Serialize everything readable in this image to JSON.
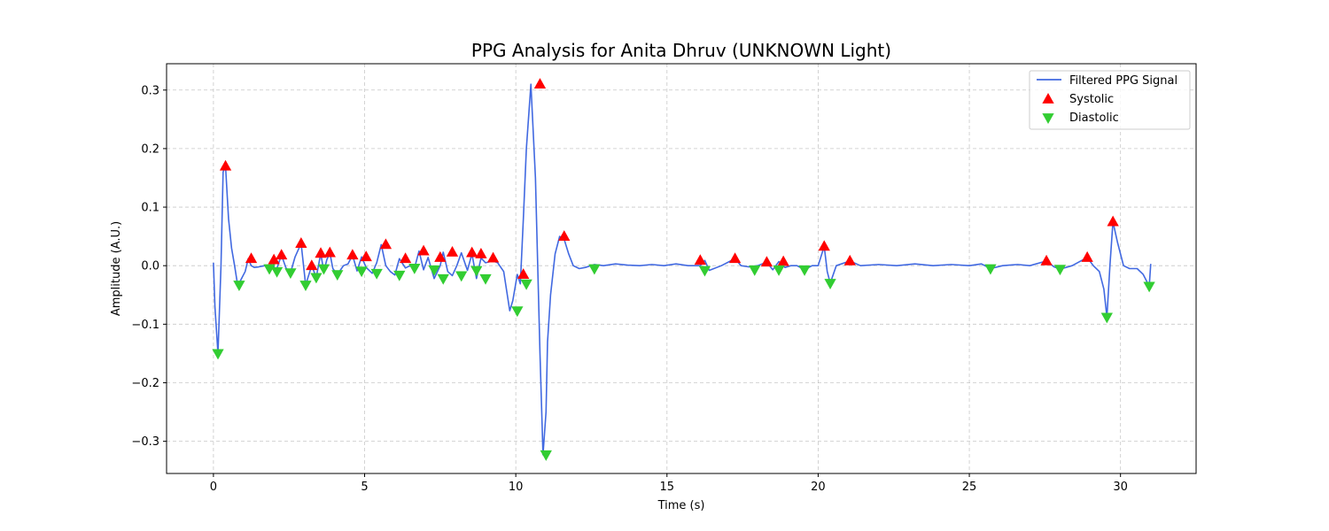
{
  "chart_data": {
    "type": "line",
    "title": "PPG Analysis for Anita Dhruv (UNKNOWN Light)",
    "xlabel": "Time (s)",
    "ylabel": "Amplitude (A.U.)",
    "xlim": [
      -1.55,
      32.5
    ],
    "ylim": [
      -0.355,
      0.345
    ],
    "xticks": [
      0,
      5,
      10,
      15,
      20,
      25,
      30
    ],
    "xtick_labels": [
      "0",
      "5",
      "10",
      "15",
      "20",
      "25",
      "30"
    ],
    "yticks": [
      -0.3,
      -0.2,
      -0.1,
      0.0,
      0.1,
      0.2,
      0.3
    ],
    "ytick_labels": [
      "−0.3",
      "−0.2",
      "−0.1",
      "0.0",
      "0.1",
      "0.2",
      "0.3"
    ],
    "grid": true,
    "legend_position": "top-right",
    "colors": {
      "signal": "#4169e1",
      "systolic": "#ff0000",
      "diastolic": "#32cd32",
      "grid": "#b0b0b0"
    },
    "series": [
      {
        "name": "Filtered PPG Signal",
        "kind": "line",
        "x": [
          0.0,
          0.05,
          0.15,
          0.25,
          0.32,
          0.4,
          0.5,
          0.6,
          0.7,
          0.8,
          0.85,
          0.95,
          1.05,
          1.15,
          1.25,
          1.35,
          1.5,
          1.7,
          1.85,
          1.95,
          2.05,
          2.25,
          2.4,
          2.55,
          2.7,
          2.9,
          3.05,
          3.25,
          3.4,
          3.55,
          3.65,
          3.75,
          3.85,
          3.95,
          4.1,
          4.3,
          4.45,
          4.6,
          4.75,
          4.9,
          5.05,
          5.25,
          5.4,
          5.55,
          5.7,
          5.85,
          6.0,
          6.15,
          6.35,
          6.5,
          6.65,
          6.8,
          6.95,
          7.1,
          7.3,
          7.5,
          7.6,
          7.75,
          7.9,
          8.05,
          8.2,
          8.4,
          8.55,
          8.7,
          8.85,
          9.0,
          9.25,
          9.4,
          9.6,
          9.8,
          9.9,
          10.05,
          10.15,
          10.25,
          10.35,
          10.5,
          10.65,
          10.8,
          10.9,
          11.0,
          11.05,
          11.15,
          11.3,
          11.45,
          11.6,
          11.75,
          11.9,
          12.1,
          12.3,
          12.6,
          12.9,
          13.3,
          13.7,
          14.1,
          14.5,
          14.9,
          15.3,
          15.7,
          16.1,
          16.25,
          16.4,
          16.8,
          17.25,
          17.45,
          17.7,
          18.0,
          18.3,
          18.5,
          18.7,
          18.9,
          19.1,
          19.3,
          19.55,
          19.8,
          20.0,
          20.2,
          20.3,
          20.4,
          20.6,
          21.05,
          21.4,
          22.0,
          22.6,
          23.2,
          23.8,
          24.4,
          25.0,
          25.4,
          25.7,
          26.1,
          26.6,
          27.0,
          27.55,
          27.8,
          28.0,
          28.4,
          28.9,
          29.1,
          29.3,
          29.45,
          29.55,
          29.65,
          29.75,
          29.9,
          30.1,
          30.3,
          30.55,
          30.75,
          30.95,
          31.0
        ],
        "y": [
          0.005,
          -0.07,
          -0.15,
          0.0,
          0.16,
          0.17,
          0.08,
          0.03,
          0.0,
          -0.033,
          -0.03,
          -0.02,
          -0.01,
          0.012,
          0.0,
          -0.003,
          -0.002,
          0.0,
          -0.005,
          0.01,
          -0.012,
          0.018,
          -0.004,
          -0.012,
          0.015,
          0.038,
          -0.033,
          0.0,
          -0.02,
          0.021,
          -0.01,
          0.01,
          0.022,
          -0.005,
          -0.015,
          0.0,
          0.003,
          0.018,
          -0.009,
          0.015,
          -0.003,
          -0.013,
          0.005,
          0.036,
          0.0,
          -0.01,
          -0.016,
          0.012,
          -0.004,
          0.0,
          -0.004,
          0.025,
          -0.007,
          0.014,
          -0.022,
          0.0,
          0.023,
          -0.01,
          -0.017,
          0.0,
          0.022,
          -0.008,
          0.02,
          -0.022,
          0.013,
          0.005,
          0.008,
          0.005,
          -0.01,
          -0.077,
          -0.06,
          -0.015,
          -0.031,
          0.08,
          0.2,
          0.31,
          0.15,
          -0.15,
          -0.323,
          -0.25,
          -0.13,
          -0.05,
          0.02,
          0.05,
          0.045,
          0.02,
          0.0,
          -0.005,
          -0.003,
          0.002,
          0.0,
          0.003,
          0.001,
          0.0,
          0.002,
          0.0,
          0.003,
          0.0,
          0.0,
          0.009,
          -0.008,
          0.0,
          0.012,
          0.0,
          -0.002,
          0.0,
          0.006,
          -0.007,
          0.007,
          -0.003,
          0.0,
          0.0,
          -0.007,
          0.0,
          0.0,
          0.033,
          -0.01,
          -0.03,
          0.0,
          0.008,
          0.0,
          0.002,
          0.0,
          0.003,
          0.0,
          0.002,
          0.0,
          0.003,
          -0.005,
          0.0,
          0.002,
          0.0,
          0.008,
          -0.002,
          -0.006,
          0.0,
          0.014,
          0.0,
          -0.01,
          -0.04,
          -0.088,
          0.0,
          0.075,
          0.04,
          0.0,
          -0.005,
          -0.005,
          -0.015,
          -0.035,
          0.003
        ]
      },
      {
        "name": "Systolic",
        "kind": "marker-up",
        "x": [
          0.4,
          1.25,
          2.0,
          2.25,
          2.9,
          3.25,
          3.55,
          3.85,
          4.6,
          5.05,
          5.7,
          6.35,
          6.95,
          7.5,
          7.9,
          8.55,
          8.85,
          9.25,
          10.25,
          10.8,
          11.6,
          16.1,
          17.25,
          18.3,
          18.85,
          20.2,
          21.05,
          27.55,
          28.9,
          29.75
        ],
        "y": [
          0.17,
          0.012,
          0.01,
          0.018,
          0.038,
          0.0,
          0.021,
          0.022,
          0.018,
          0.015,
          0.036,
          0.012,
          0.025,
          0.014,
          0.023,
          0.022,
          0.02,
          0.013,
          -0.015,
          0.31,
          0.05,
          0.009,
          0.012,
          0.006,
          0.007,
          0.033,
          0.008,
          0.008,
          0.014,
          0.075
        ]
      },
      {
        "name": "Diastolic",
        "kind": "marker-down",
        "x": [
          0.15,
          0.85,
          1.85,
          2.1,
          2.55,
          3.05,
          3.4,
          3.65,
          4.1,
          4.9,
          5.4,
          6.15,
          6.65,
          7.3,
          7.6,
          8.2,
          8.7,
          9.0,
          10.05,
          10.35,
          11.0,
          12.6,
          16.25,
          17.9,
          18.7,
          19.55,
          20.4,
          25.7,
          28.0,
          29.55,
          30.95
        ],
        "y": [
          -0.15,
          -0.033,
          -0.005,
          -0.01,
          -0.012,
          -0.033,
          -0.02,
          -0.005,
          -0.015,
          -0.009,
          -0.013,
          -0.016,
          -0.004,
          -0.007,
          -0.022,
          -0.017,
          -0.008,
          -0.022,
          -0.077,
          -0.031,
          -0.323,
          -0.005,
          -0.008,
          -0.007,
          -0.007,
          -0.007,
          -0.03,
          -0.005,
          -0.006,
          -0.088,
          -0.035
        ]
      }
    ]
  }
}
